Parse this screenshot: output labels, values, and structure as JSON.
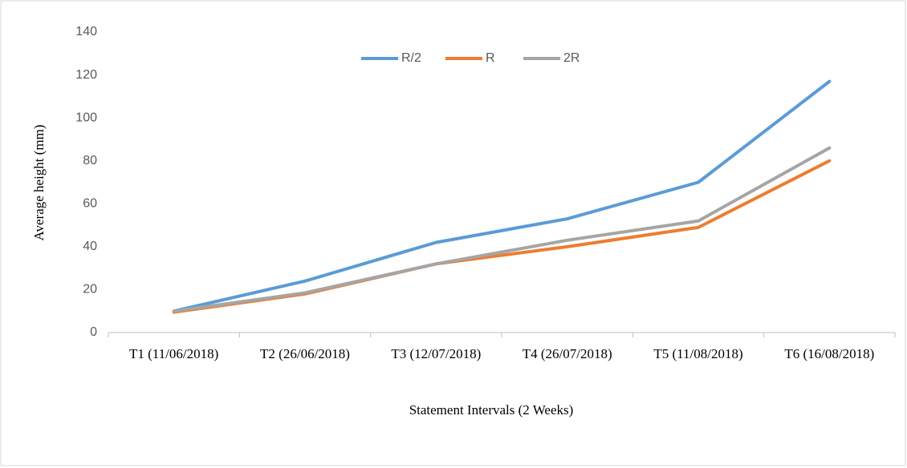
{
  "chart_data": {
    "type": "line",
    "x_label": "Statement Intervals (2 Weeks)",
    "y_label": "Average height (mm)",
    "categories": [
      "T1 (11/06/2018)",
      "T2 (26/06/2018)",
      "T3 (12/07/2018)",
      "T4 (26/07/2018)",
      "T5 (11/08/2018)",
      "T6 (16/08/2018)"
    ],
    "series": [
      {
        "name": "R/2",
        "color": "#5b9bd5",
        "values": [
          10,
          24,
          42,
          53,
          70,
          117
        ]
      },
      {
        "name": "R",
        "color": "#ed7d31",
        "values": [
          9.5,
          18,
          32,
          40,
          49,
          80
        ]
      },
      {
        "name": "2R",
        "color": "#a5a5a5",
        "values": [
          10,
          18.5,
          32,
          43,
          52,
          86
        ]
      }
    ],
    "ylim": [
      0,
      140
    ],
    "yticks": [
      0,
      20,
      40,
      60,
      80,
      100,
      120,
      140
    ],
    "legend": "top",
    "grid": false
  }
}
